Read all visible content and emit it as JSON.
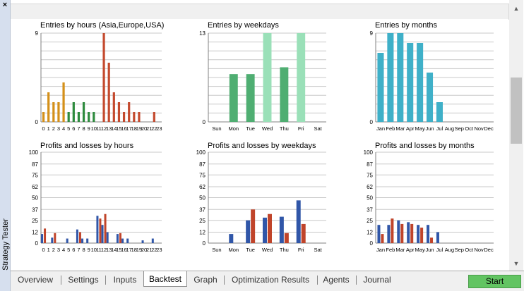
{
  "window": {
    "side_title": "Strategy Tester",
    "close_glyph": "×"
  },
  "tabs": [
    "Overview",
    "Settings",
    "Inputs",
    "Backtest",
    "Graph",
    "Optimization Results",
    "Agents",
    "Journal"
  ],
  "active_tab": "Backtest",
  "start_label": "Start",
  "colors": {
    "entries_asia": "#d4901a",
    "entries_europe": "#2e8b3e",
    "entries_usa": "#c44a2e",
    "weekdays": "#4fae72",
    "weekdays_top": "#9ae0b8",
    "months": "#3fb0c8",
    "profit": "#3056a8",
    "loss": "#c0442a",
    "grid": "#c8c8c8"
  },
  "chart_data": [
    {
      "id": "entries-hours",
      "type": "bar",
      "title": "Entries by hours (Asia,Europe,USA)",
      "categories": [
        "0",
        "1",
        "2",
        "3",
        "4",
        "5",
        "6",
        "7",
        "8",
        "9",
        "10",
        "11",
        "12",
        "13",
        "14",
        "15",
        "16",
        "17",
        "18",
        "19",
        "20",
        "21",
        "22",
        "23"
      ],
      "values": [
        1,
        3,
        2,
        2,
        4,
        1,
        2,
        1,
        2,
        1,
        1,
        0,
        9,
        6,
        3,
        2,
        1,
        2,
        1,
        1,
        0,
        0,
        1,
        0
      ],
      "ylim": [
        0,
        9
      ],
      "yticks": [
        "9",
        "0"
      ],
      "gridlines": 10
    },
    {
      "id": "entries-weekdays",
      "type": "bar",
      "title": "Entries by weekdays",
      "categories": [
        "Sun",
        "Mon",
        "Tue",
        "Wed",
        "Thu",
        "Fri",
        "Sat"
      ],
      "values": [
        0,
        7,
        7,
        13,
        8,
        13,
        0
      ],
      "ylim": [
        0,
        13
      ],
      "yticks": [
        "13",
        "0"
      ],
      "gridlines": 10
    },
    {
      "id": "entries-months",
      "type": "bar",
      "title": "Entries by months",
      "categories": [
        "Jan",
        "Feb",
        "Mar",
        "Apr",
        "May",
        "Jun",
        "Jul",
        "Aug",
        "Sep",
        "Oct",
        "Nov",
        "Dec"
      ],
      "values": [
        7,
        9,
        9,
        8,
        8,
        5,
        2,
        0,
        0,
        0,
        0,
        0
      ],
      "ylim": [
        0,
        9
      ],
      "yticks": [
        "9",
        "0"
      ],
      "gridlines": 10
    },
    {
      "id": "pl-hours",
      "type": "bar",
      "title": "Profits and losses by hours",
      "categories": [
        "0",
        "1",
        "2",
        "3",
        "4",
        "5",
        "6",
        "7",
        "8",
        "9",
        "10",
        "11",
        "12",
        "13",
        "14",
        "15",
        "16",
        "17",
        "18",
        "19",
        "20",
        "21",
        "22",
        "23"
      ],
      "series": [
        {
          "name": "profits",
          "values": [
            10,
            0,
            6,
            0,
            0,
            5,
            0,
            15,
            5,
            5,
            0,
            30,
            20,
            12,
            0,
            10,
            5,
            5,
            0,
            0,
            3,
            0,
            5,
            0
          ]
        },
        {
          "name": "losses",
          "values": [
            16,
            0,
            11,
            0,
            0,
            0,
            0,
            12,
            0,
            0,
            0,
            27,
            32,
            0,
            0,
            11,
            0,
            0,
            0,
            0,
            0,
            0,
            0,
            0
          ]
        }
      ],
      "ylim": [
        0,
        100
      ],
      "yticks": [
        "100",
        "87",
        "75",
        "62",
        "50",
        "37",
        "25",
        "12",
        "0"
      ]
    },
    {
      "id": "pl-weekdays",
      "type": "bar",
      "title": "Profits and losses by weekdays",
      "categories": [
        "Sun",
        "Mon",
        "Tue",
        "Wed",
        "Thu",
        "Fri",
        "Sat"
      ],
      "series": [
        {
          "name": "profits",
          "values": [
            0,
            10,
            25,
            28,
            29,
            47,
            0
          ]
        },
        {
          "name": "losses",
          "values": [
            0,
            0,
            37,
            32,
            11,
            21,
            0
          ]
        }
      ],
      "ylim": [
        0,
        100
      ],
      "yticks": [
        "100",
        "87",
        "75",
        "62",
        "50",
        "37",
        "25",
        "12",
        "0"
      ]
    },
    {
      "id": "pl-months",
      "type": "bar",
      "title": "Profits and losses by months",
      "categories": [
        "Jan",
        "Feb",
        "Mar",
        "Apr",
        "May",
        "Jun",
        "Jul",
        "Aug",
        "Sep",
        "Oct",
        "Nov",
        "Dec"
      ],
      "series": [
        {
          "name": "profits",
          "values": [
            20,
            20,
            25,
            23,
            20,
            20,
            12,
            0,
            0,
            0,
            0,
            0
          ]
        },
        {
          "name": "losses",
          "values": [
            10,
            27,
            21,
            21,
            17,
            6,
            0,
            0,
            0,
            0,
            0,
            0
          ]
        }
      ],
      "ylim": [
        0,
        100
      ],
      "yticks": [
        "100",
        "87",
        "75",
        "62",
        "50",
        "37",
        "25",
        "12",
        "0"
      ]
    }
  ]
}
